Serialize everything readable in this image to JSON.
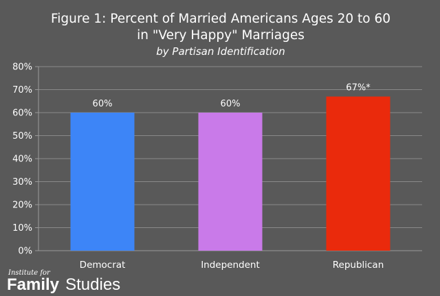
{
  "chart_data": {
    "type": "bar",
    "title_lines": [
      "Figure 1: Percent of Married Americans Ages 20 to 60",
      "in \"Very Happy\" Marriages"
    ],
    "subtitle": "by Partisan Identification",
    "categories": [
      "Democrat",
      "Independent",
      "Republican"
    ],
    "values": [
      60,
      60,
      67
    ],
    "data_labels": [
      "60%",
      "60%",
      "67%*"
    ],
    "colors": [
      "#3d85f7",
      "#c97ae9",
      "#ea2a0c"
    ],
    "ylim": [
      0,
      80
    ],
    "yticks": [
      "0%",
      "10%",
      "20%",
      "30%",
      "40%",
      "50%",
      "60%",
      "70%",
      "80%"
    ],
    "xlabel": "",
    "ylabel": "",
    "grid": true,
    "legend": "none"
  },
  "logo": {
    "top_text": "Institute for",
    "word1": "Family",
    "word2": "Studies"
  }
}
